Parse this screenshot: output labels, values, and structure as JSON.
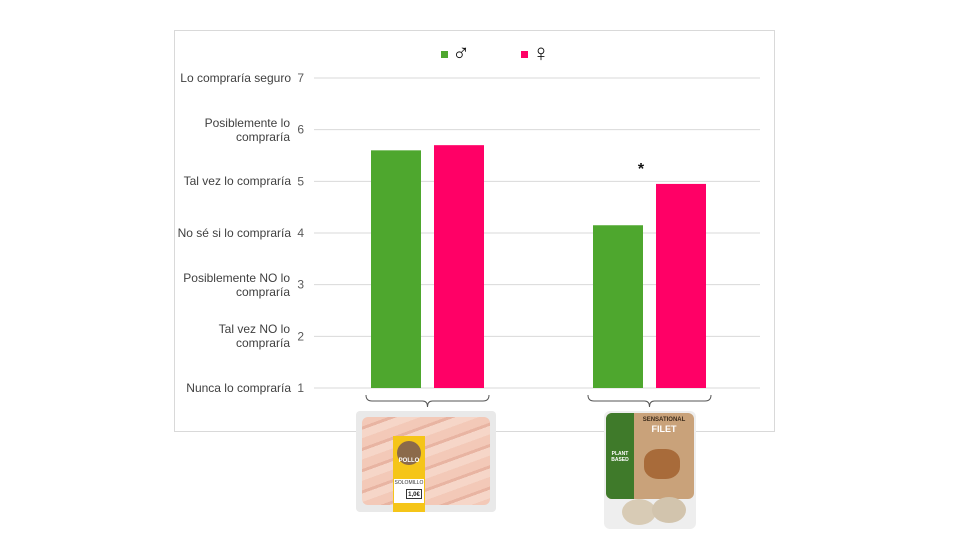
{
  "chart_data": {
    "type": "bar",
    "categories": [
      "chicken-fillet",
      "plant-based-filet"
    ],
    "series": [
      {
        "name": "♂",
        "values": [
          5.6,
          4.15
        ],
        "color": "#4ea72e"
      },
      {
        "name": "♀",
        "values": [
          5.7,
          4.95
        ],
        "color": "#ff0066"
      }
    ],
    "ylim": [
      1,
      7
    ],
    "yticks": [
      1,
      2,
      3,
      4,
      5,
      6,
      7
    ],
    "ytick_labels": [
      "Nunca lo compraría",
      "Tal vez NO lo compraría",
      "Posiblemente NO lo compraría",
      "No sé si lo compraría",
      "Tal vez lo compraría",
      "Posiblemente lo compraría",
      "Lo compraría seguro"
    ],
    "annotations": [
      {
        "category": "plant-based-filet",
        "text": "*"
      }
    ],
    "grid": true,
    "legend": "top-center"
  },
  "products": [
    {
      "lettering": [
        "POLLO",
        "SOLOMILLO",
        "1,0€"
      ]
    },
    {
      "lettering": [
        "SENSATIONAL",
        "FILET",
        "PLANT BASED"
      ]
    }
  ]
}
